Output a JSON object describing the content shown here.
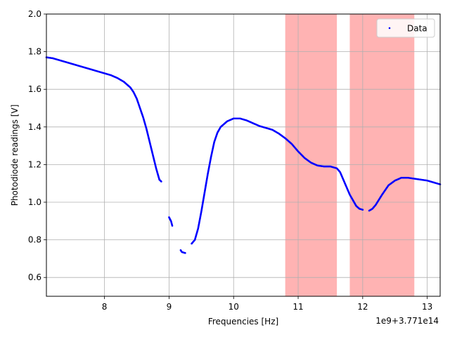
{
  "chart_data": {
    "type": "scatter",
    "title": "",
    "xlabel": "Frequencies [Hz]",
    "ylabel": "Photodiode readings [V]",
    "x_offset_text": "1e9+3.771e14",
    "xlim": [
      7.1,
      13.2
    ],
    "ylim": [
      0.5,
      2.0
    ],
    "xticks": [
      "8",
      "9",
      "10",
      "11",
      "12",
      "13"
    ],
    "yticks": [
      "0.6",
      "0.8",
      "1.0",
      "1.2",
      "1.4",
      "1.6",
      "1.8",
      "2.0"
    ],
    "grid": true,
    "legend": {
      "entries": [
        "Data"
      ],
      "placement": "upper right"
    },
    "highlight_bands": [
      {
        "x0": 10.8,
        "x1": 11.6,
        "color": "#ff9999"
      },
      {
        "x0": 11.8,
        "x1": 12.8,
        "color": "#ff9999"
      }
    ],
    "series": [
      {
        "name": "Data",
        "color": "#0000ff",
        "segments": [
          [
            [
              7.1,
              1.77
            ],
            [
              7.2,
              1.765
            ],
            [
              7.4,
              1.745
            ],
            [
              7.6,
              1.725
            ],
            [
              7.8,
              1.705
            ],
            [
              8.0,
              1.685
            ],
            [
              8.1,
              1.675
            ],
            [
              8.2,
              1.66
            ],
            [
              8.3,
              1.64
            ],
            [
              8.4,
              1.61
            ],
            [
              8.45,
              1.585
            ],
            [
              8.5,
              1.55
            ],
            [
              8.55,
              1.5
            ],
            [
              8.6,
              1.45
            ],
            [
              8.65,
              1.39
            ],
            [
              8.7,
              1.32
            ],
            [
              8.75,
              1.25
            ],
            [
              8.8,
              1.18
            ],
            [
              8.85,
              1.12
            ],
            [
              8.88,
              1.11
            ]
          ],
          [
            [
              9.0,
              0.92
            ],
            [
              9.03,
              0.9
            ],
            [
              9.05,
              0.875
            ]
          ],
          [
            [
              9.18,
              0.745
            ],
            [
              9.2,
              0.735
            ],
            [
              9.25,
              0.73
            ]
          ],
          [
            [
              9.35,
              0.78
            ],
            [
              9.4,
              0.8
            ],
            [
              9.45,
              0.86
            ],
            [
              9.5,
              0.95
            ],
            [
              9.55,
              1.05
            ],
            [
              9.6,
              1.15
            ],
            [
              9.65,
              1.24
            ],
            [
              9.7,
              1.32
            ],
            [
              9.75,
              1.37
            ],
            [
              9.8,
              1.4
            ],
            [
              9.9,
              1.43
            ],
            [
              10.0,
              1.445
            ],
            [
              10.1,
              1.445
            ],
            [
              10.2,
              1.435
            ],
            [
              10.3,
              1.42
            ],
            [
              10.4,
              1.405
            ],
            [
              10.5,
              1.395
            ],
            [
              10.6,
              1.385
            ],
            [
              10.7,
              1.365
            ],
            [
              10.8,
              1.34
            ],
            [
              10.9,
              1.31
            ],
            [
              11.0,
              1.27
            ],
            [
              11.1,
              1.235
            ],
            [
              11.2,
              1.21
            ],
            [
              11.3,
              1.195
            ],
            [
              11.4,
              1.19
            ],
            [
              11.5,
              1.19
            ],
            [
              11.6,
              1.18
            ],
            [
              11.65,
              1.16
            ],
            [
              11.7,
              1.12
            ],
            [
              11.75,
              1.08
            ],
            [
              11.8,
              1.04
            ],
            [
              11.85,
              1.01
            ],
            [
              11.9,
              0.98
            ],
            [
              11.95,
              0.965
            ],
            [
              12.0,
              0.96
            ]
          ],
          [
            [
              12.1,
              0.955
            ],
            [
              12.15,
              0.965
            ],
            [
              12.2,
              0.985
            ],
            [
              12.3,
              1.04
            ],
            [
              12.4,
              1.09
            ],
            [
              12.5,
              1.115
            ],
            [
              12.6,
              1.13
            ],
            [
              12.7,
              1.13
            ],
            [
              12.8,
              1.125
            ],
            [
              12.9,
              1.12
            ],
            [
              13.0,
              1.115
            ],
            [
              13.1,
              1.105
            ],
            [
              13.2,
              1.095
            ]
          ]
        ]
      }
    ]
  }
}
